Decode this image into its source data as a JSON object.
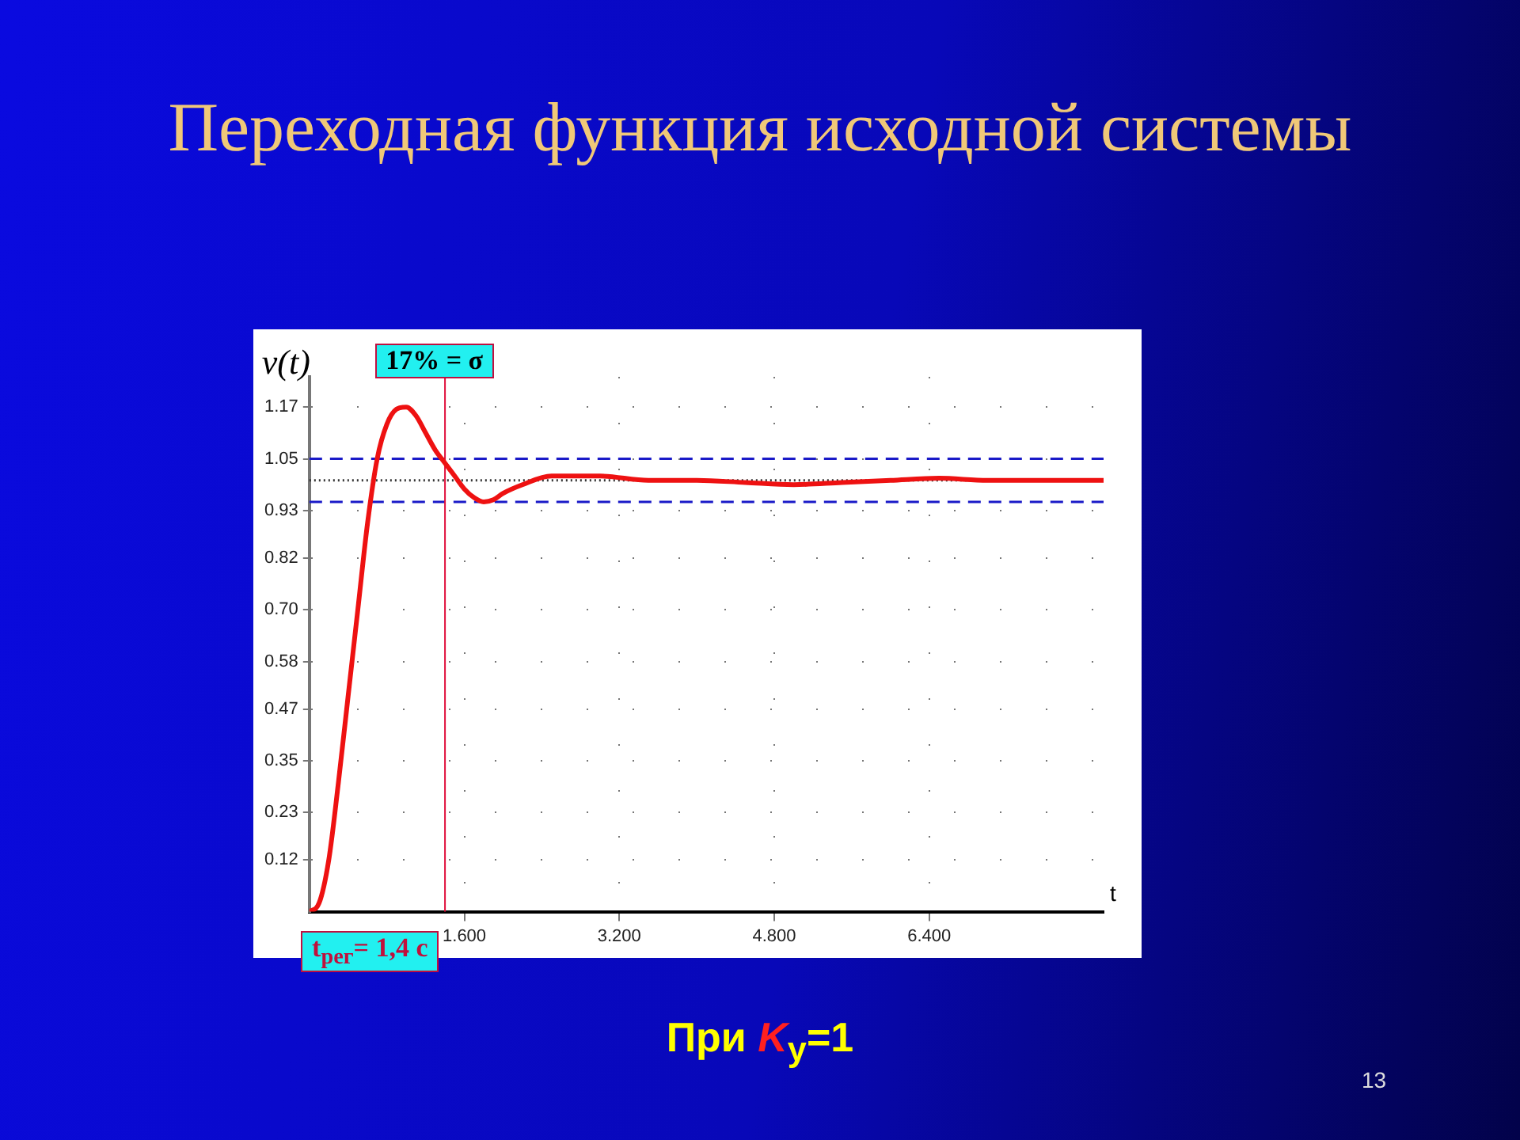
{
  "chart_data": {
    "type": "line",
    "title": "Переходная функция исходной системы",
    "ylabel": "v(t)",
    "xlabel": "t",
    "x": [
      0,
      0.1,
      0.2,
      0.3,
      0.4,
      0.5,
      0.6,
      0.7,
      0.8,
      0.9,
      1.0,
      1.1,
      1.2,
      1.3,
      1.4,
      1.5,
      1.6,
      1.7,
      1.8,
      1.9,
      2.0,
      2.2,
      2.5,
      3.0,
      3.5,
      4.0,
      4.5,
      5.0,
      5.5,
      6.0,
      6.5,
      7.0,
      7.5,
      8.2
    ],
    "series": [
      {
        "color": "#ee1111",
        "values": [
          0,
          0.02,
          0.12,
          0.3,
          0.5,
          0.7,
          0.9,
          1.05,
          1.13,
          1.165,
          1.17,
          1.15,
          1.11,
          1.07,
          1.04,
          1.01,
          0.98,
          0.96,
          0.95,
          0.955,
          0.97,
          0.99,
          1.01,
          1.01,
          1.0,
          1.0,
          0.995,
          0.99,
          0.995,
          1.0,
          1.005,
          1.0,
          1.0,
          1.0
        ]
      }
    ],
    "xlim": [
      0,
      8.2
    ],
    "xticks": [
      {
        "value": 1.6,
        "label": "1.600"
      },
      {
        "value": 3.2,
        "label": "3.200"
      },
      {
        "value": 4.8,
        "label": "4.800"
      },
      {
        "value": 6.4,
        "label": "6.400"
      }
    ],
    "ylim": [
      0,
      1.24
    ],
    "yticks": [
      0.12,
      0.23,
      0.35,
      0.47,
      0.58,
      {
        "value": 0.7,
        "label": "0.70"
      },
      0.82,
      0.93,
      1.05,
      1.17
    ],
    "ref_lines": [
      {
        "axis": "y",
        "value": 1.05,
        "color": "#1a1ac8",
        "line_style": "dashed"
      },
      {
        "axis": "y",
        "value": 0.95,
        "color": "#1a1ac8",
        "line_style": "dashed"
      },
      {
        "axis": "y",
        "value": 1.0,
        "color": "#333333",
        "line_style": "dotted"
      },
      {
        "axis": "x",
        "value": 1.4,
        "color": "#e0103c",
        "line_style": "solid"
      }
    ],
    "annotations": [
      {
        "text": "17% = σ",
        "x": 1.0,
        "y": 1.17
      },
      {
        "text": "t$_{рег}$= 1,4 с",
        "x": 1.4,
        "y": 0
      },
      "При K$_{y}$=1",
      "13"
    ],
    "grid": true,
    "legend": false,
    "marker": "none",
    "line_style": "solid"
  }
}
